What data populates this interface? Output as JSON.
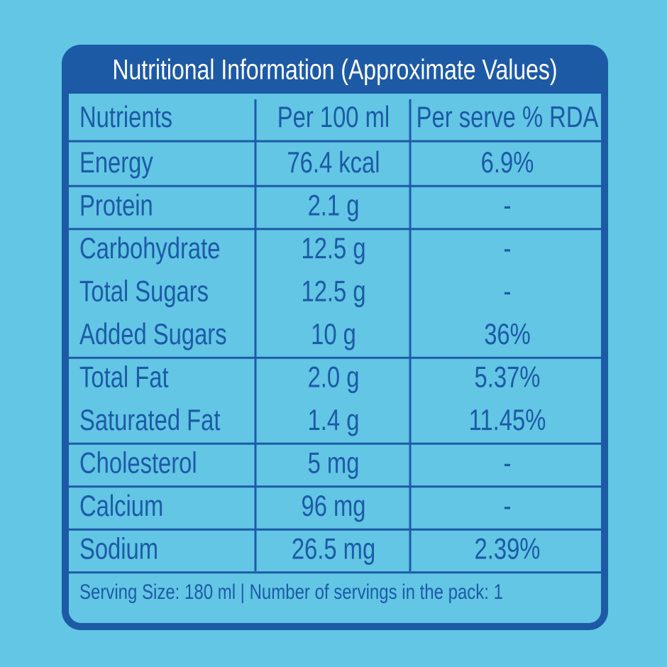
{
  "title": "Nutritional Information (Approximate Values)",
  "table": {
    "header": [
      "Nutrients",
      "Per 100 ml",
      "Per serve % RDA"
    ],
    "rows": [
      [
        "Energy",
        "76.4 kcal",
        "6.9%"
      ],
      [
        "Protein",
        "2.1 g",
        "-"
      ],
      [
        "Carbohydrate",
        "12.5 g",
        "-"
      ],
      [
        "Total Sugars",
        "12.5 g",
        "-"
      ],
      [
        "Added Sugars",
        "10 g",
        "36%"
      ],
      [
        "Total Fat",
        "2.0 g",
        "5.37%"
      ],
      [
        "Saturated Fat",
        "1.4 g",
        "11.45%"
      ],
      [
        "Cholesterol",
        "5 mg",
        "-"
      ],
      [
        "Calcium",
        "96 mg",
        "-"
      ],
      [
        "Sodium",
        "26.5 mg",
        "2.39%"
      ]
    ]
  },
  "footer": "Serving  Size: 180 ml | Number of servings in the pack: 1"
}
